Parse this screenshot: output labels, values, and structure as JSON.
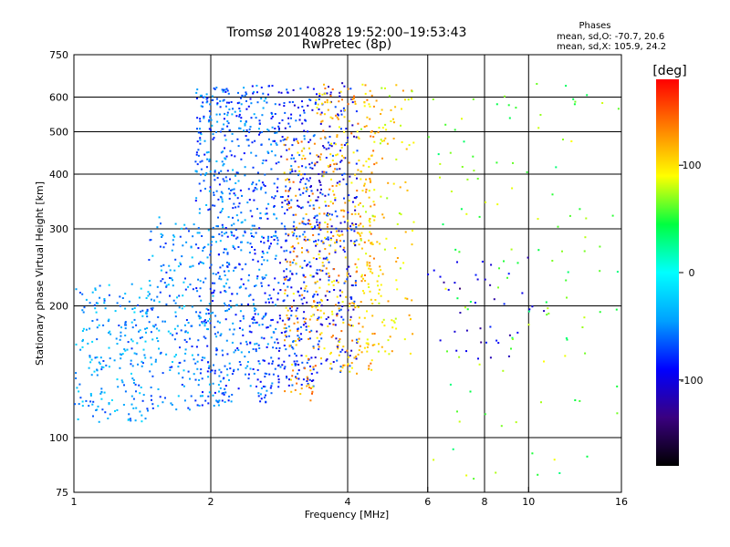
{
  "chart_data": {
    "type": "scatter",
    "title_line1": "Tromsø 20140828 19:52:00–19:53:43",
    "title_line2": "RwPretec (8p)",
    "phase_header": "Phases",
    "phase_stats": [
      "mean, sd,O: -70.7, 20.6",
      "mean, sd,X: 105.9, 24.2"
    ],
    "xlabel": "Frequency [MHz]",
    "ylabel": "Stationary phase Virtual Height [km]",
    "x_scale": "log",
    "y_scale": "log",
    "xlim": [
      1,
      16
    ],
    "ylim": [
      75,
      750
    ],
    "x_ticks": [
      1,
      2,
      4,
      6,
      8,
      10,
      16
    ],
    "y_ticks": [
      75,
      100,
      200,
      300,
      400,
      500,
      600,
      750
    ],
    "x_gridlines": [
      2,
      4,
      6,
      8,
      10
    ],
    "y_gridlines": [
      100,
      200,
      300,
      400,
      500,
      600
    ],
    "colorbar": {
      "label": "[deg]",
      "range": [
        -180,
        180
      ],
      "ticks": [
        100,
        0,
        -100
      ],
      "colors": [
        "#000000",
        "#3a0080",
        "#0000ff",
        "#00a0ff",
        "#00ffff",
        "#00ff40",
        "#ffff00",
        "#ff8000",
        "#ff0000"
      ]
    },
    "series": [
      {
        "x_range": [
          1.0,
          1.45
        ],
        "y_range": [
          108,
          225
        ],
        "phase": -45,
        "count": 220
      },
      {
        "x_range": [
          1.45,
          1.85
        ],
        "y_range": [
          115,
          320
        ],
        "phase": -50,
        "count": 180
      },
      {
        "x_range": [
          1.85,
          2.25
        ],
        "y_range": [
          118,
          640
        ],
        "phase": -60,
        "count": 420
      },
      {
        "x_range": [
          2.25,
          2.8
        ],
        "y_range": [
          120,
          640
        ],
        "phase": -65,
        "count": 380
      },
      {
        "x_range": [
          2.8,
          3.4
        ],
        "y_range": [
          130,
          640
        ],
        "phase": -80,
        "count": 320
      },
      {
        "x_range": [
          2.9,
          3.4
        ],
        "y_range": [
          120,
          500
        ],
        "phase": 120,
        "count": 140
      },
      {
        "x_range": [
          3.4,
          4.2
        ],
        "y_range": [
          140,
          650
        ],
        "phase": -90,
        "count": 240
      },
      {
        "x_range": [
          3.4,
          4.6
        ],
        "y_range": [
          140,
          650
        ],
        "phase": 115,
        "count": 320
      },
      {
        "x_range": [
          4.2,
          5.6
        ],
        "y_range": [
          150,
          650
        ],
        "phase": 100,
        "count": 160
      },
      {
        "x_range": [
          6.0,
          16.0
        ],
        "y_range": [
          80,
          650
        ],
        "phase": 60,
        "count": 120
      },
      {
        "x_range": [
          6.0,
          11.0
        ],
        "y_range": [
          150,
          260
        ],
        "phase": -110,
        "count": 40
      }
    ]
  }
}
